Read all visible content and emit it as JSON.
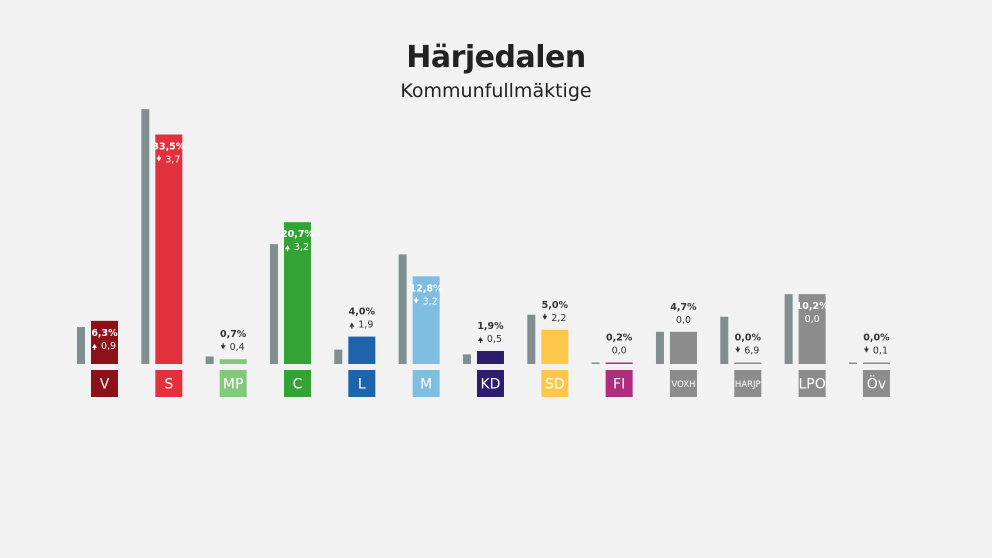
{
  "header": {
    "title": "Härjedalen",
    "subtitle": "Kommunfullmäktige"
  },
  "chart_data": {
    "type": "bar",
    "categories": [
      "V",
      "S",
      "MP",
      "C",
      "L",
      "M",
      "KD",
      "SD",
      "FI",
      "VOXH",
      "HARJP",
      "LPO",
      "Öv"
    ],
    "series": [
      {
        "values": [
          5.4,
          37.2,
          1.1,
          17.5,
          2.1,
          16.0,
          1.4,
          7.2,
          0.2,
          4.7,
          6.9,
          10.2,
          0.1
        ]
      },
      {
        "values": [
          6.3,
          33.5,
          0.7,
          20.7,
          4.0,
          12.8,
          1.9,
          5.0,
          0.2,
          4.7,
          0.0,
          10.2,
          0.0
        ]
      }
    ],
    "value_labels": [
      "6,3%",
      "33,5%",
      "0,7%",
      "20,7%",
      "4,0%",
      "12,8%",
      "1,9%",
      "5,0%",
      "0,2%",
      "4,7%",
      "0,0%",
      "10,2%",
      "0,0%"
    ],
    "change_labels": [
      "0,9",
      "3,7",
      "0,4",
      "3,2",
      "1,9",
      "3,2",
      "0,5",
      "2,2",
      "0,0",
      "0,0",
      "6,9",
      "0,0",
      "0,1"
    ],
    "change_direction": [
      "up",
      "down",
      "down",
      "up",
      "up",
      "down",
      "up",
      "down",
      "none",
      "none",
      "down",
      "none",
      "down"
    ],
    "ylim": [
      0,
      38
    ],
    "colors": {
      "previous": "#7f8f8f",
      "bars": [
        "#8c1119",
        "#e0313d",
        "#83c97b",
        "#34a336",
        "#1e64ad",
        "#7fbde3",
        "#2d1d6e",
        "#fdc847",
        "#ae2e7e",
        "#8c8c8c",
        "#8c8c8c",
        "#8c8c8c",
        "#8c8c8c"
      ],
      "label_text_dark": "#333333",
      "label_text_light": "#ffffff"
    }
  }
}
